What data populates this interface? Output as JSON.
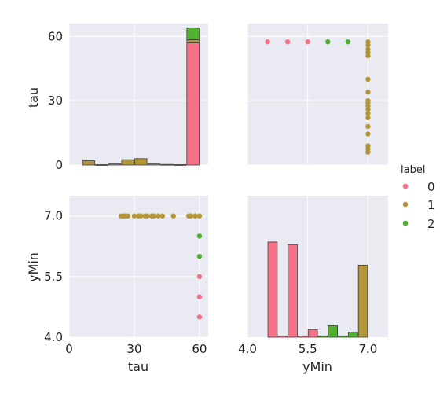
{
  "chart_data": {
    "type": "pairplot",
    "variables": [
      "tau",
      "yMin"
    ],
    "legend": {
      "title": "label",
      "placement": "right",
      "entries": [
        {
          "name": "0",
          "color": "#f77189"
        },
        {
          "name": "1",
          "color": "#b3963a"
        },
        {
          "name": "2",
          "color": "#50b131"
        }
      ]
    },
    "grid": true,
    "panels": [
      {
        "id": "tau-hist",
        "type": "histogram",
        "xvar": "tau",
        "xlim": [
          0,
          64
        ],
        "ylim": [
          0,
          66
        ],
        "yticks": [
          0,
          30,
          60
        ],
        "bars": [
          {
            "x0": 6,
            "x1": 12,
            "label": "1",
            "value": 2
          },
          {
            "x0": 12,
            "x1": 18,
            "label": "1",
            "value": 0.2
          },
          {
            "x0": 18,
            "x1": 24,
            "label": "1",
            "value": 0.5
          },
          {
            "x0": 24,
            "x1": 30,
            "label": "1",
            "value": 2.5
          },
          {
            "x0": 30,
            "x1": 36,
            "label": "1",
            "value": 3
          },
          {
            "x0": 36,
            "x1": 42,
            "label": "1",
            "value": 0.5
          },
          {
            "x0": 42,
            "x1": 48,
            "label": "1",
            "value": 0.3
          },
          {
            "x0": 48,
            "x1": 54,
            "label": "1",
            "value": 0.2
          },
          {
            "x0": 54,
            "x1": 60,
            "label": "0",
            "value": 57
          },
          {
            "x0": 54,
            "x1": 60,
            "label": "1",
            "value": 1.5,
            "base": 57
          },
          {
            "x0": 54,
            "x1": 60,
            "label": "2",
            "value": 5.5,
            "base": 58.5
          }
        ]
      },
      {
        "id": "tau-vs-ymin",
        "type": "scatter",
        "xvar": "yMin",
        "yvar": "tau",
        "xlim": [
          4.0,
          7.5
        ],
        "ylim": [
          0,
          66
        ],
        "points": [
          {
            "x": 4.5,
            "y": 57.5,
            "label": "0"
          },
          {
            "x": 5.0,
            "y": 57.5,
            "label": "0"
          },
          {
            "x": 5.5,
            "y": 57.5,
            "label": "0"
          },
          {
            "x": 6.0,
            "y": 57.5,
            "label": "2"
          },
          {
            "x": 6.5,
            "y": 57.5,
            "label": "2"
          },
          {
            "x": 7.0,
            "y": 57.5,
            "label": "1"
          },
          {
            "x": 7.0,
            "y": 56,
            "label": "1"
          },
          {
            "x": 7.0,
            "y": 54,
            "label": "1"
          },
          {
            "x": 7.0,
            "y": 52.5,
            "label": "1"
          },
          {
            "x": 7.0,
            "y": 51,
            "label": "1"
          },
          {
            "x": 7.0,
            "y": 40,
            "label": "1"
          },
          {
            "x": 7.0,
            "y": 34,
            "label": "1"
          },
          {
            "x": 7.0,
            "y": 30,
            "label": "1"
          },
          {
            "x": 7.0,
            "y": 29,
            "label": "1"
          },
          {
            "x": 7.0,
            "y": 27.5,
            "label": "1"
          },
          {
            "x": 7.0,
            "y": 26,
            "label": "1"
          },
          {
            "x": 7.0,
            "y": 24,
            "label": "1"
          },
          {
            "x": 7.0,
            "y": 22,
            "label": "1"
          },
          {
            "x": 7.0,
            "y": 18,
            "label": "1"
          },
          {
            "x": 7.0,
            "y": 14.5,
            "label": "1"
          },
          {
            "x": 7.0,
            "y": 9,
            "label": "1"
          },
          {
            "x": 7.0,
            "y": 7.5,
            "label": "1"
          },
          {
            "x": 7.0,
            "y": 6,
            "label": "1"
          }
        ]
      },
      {
        "id": "ymin-vs-tau",
        "type": "scatter",
        "xvar": "tau",
        "yvar": "yMin",
        "xlim": [
          0,
          64
        ],
        "ylim": [
          4.0,
          7.5
        ],
        "xticks": [
          0,
          30,
          60
        ],
        "yticks": [
          "4.0",
          "5.5",
          "7.0"
        ],
        "points": [
          {
            "x": 24,
            "y": 7.0,
            "label": "1"
          },
          {
            "x": 25,
            "y": 7.0,
            "label": "1"
          },
          {
            "x": 26,
            "y": 7.0,
            "label": "1"
          },
          {
            "x": 27,
            "y": 7.0,
            "label": "1"
          },
          {
            "x": 30,
            "y": 7.0,
            "label": "1"
          },
          {
            "x": 32,
            "y": 7.0,
            "label": "1"
          },
          {
            "x": 33,
            "y": 7.0,
            "label": "1"
          },
          {
            "x": 35,
            "y": 7.0,
            "label": "1"
          },
          {
            "x": 36,
            "y": 7.0,
            "label": "1"
          },
          {
            "x": 38,
            "y": 7.0,
            "label": "1"
          },
          {
            "x": 39,
            "y": 7.0,
            "label": "1"
          },
          {
            "x": 41,
            "y": 7.0,
            "label": "1"
          },
          {
            "x": 43,
            "y": 7.0,
            "label": "1"
          },
          {
            "x": 48,
            "y": 7.0,
            "label": "1"
          },
          {
            "x": 55,
            "y": 7.0,
            "label": "1"
          },
          {
            "x": 56,
            "y": 7.0,
            "label": "1"
          },
          {
            "x": 58,
            "y": 7.0,
            "label": "1"
          },
          {
            "x": 60,
            "y": 7.0,
            "label": "1"
          },
          {
            "x": 60,
            "y": 6.5,
            "label": "2"
          },
          {
            "x": 60,
            "y": 6.0,
            "label": "2"
          },
          {
            "x": 60,
            "y": 5.5,
            "label": "0"
          },
          {
            "x": 60,
            "y": 5.0,
            "label": "0"
          },
          {
            "x": 60,
            "y": 4.5,
            "label": "0"
          }
        ]
      },
      {
        "id": "ymin-hist",
        "type": "histogram",
        "xvar": "yMin",
        "xlim": [
          4.0,
          7.5
        ],
        "ylim": [
          0,
          5.5
        ],
        "xticks": [
          "4.0",
          "5.5",
          "7.0"
        ],
        "bars": [
          {
            "x0": 4.5,
            "x1": 4.75,
            "label": "0",
            "value": 3.7
          },
          {
            "x0": 4.75,
            "x1": 5.0,
            "label": "0",
            "value": 0.05
          },
          {
            "x0": 5.0,
            "x1": 5.25,
            "label": "0",
            "value": 3.6
          },
          {
            "x0": 5.25,
            "x1": 5.5,
            "label": "0",
            "value": 0.05
          },
          {
            "x0": 5.5,
            "x1": 5.75,
            "label": "0",
            "value": 0.3
          },
          {
            "x0": 5.75,
            "x1": 6.0,
            "label": "2",
            "value": 0.05
          },
          {
            "x0": 6.0,
            "x1": 6.25,
            "label": "2",
            "value": 0.45
          },
          {
            "x0": 6.25,
            "x1": 6.5,
            "label": "2",
            "value": 0.05
          },
          {
            "x0": 6.5,
            "x1": 6.75,
            "label": "2",
            "value": 0.2
          },
          {
            "x0": 6.75,
            "x1": 7.0,
            "label": "1",
            "value": 2.8
          }
        ]
      }
    ]
  }
}
